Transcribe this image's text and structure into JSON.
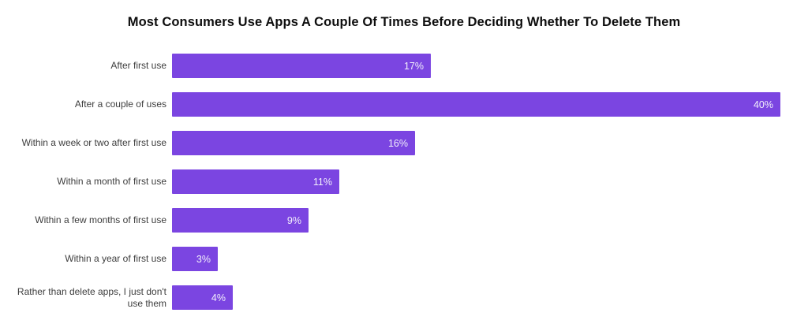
{
  "chart_data": {
    "type": "bar",
    "orientation": "horizontal",
    "title": "Most Consumers Use Apps A Couple Of Times Before Deciding Whether To Delete Them",
    "categories": [
      "After first use",
      "After a couple of uses",
      "Within a week or two after first use",
      "Within a month of first use",
      "Within a few months of first use",
      "Within a year of first use",
      "Rather than delete apps, I just don't use them"
    ],
    "values": [
      17,
      40,
      16,
      11,
      9,
      3,
      4
    ],
    "value_labels": [
      "17%",
      "40%",
      "16%",
      "11%",
      "9%",
      "3%",
      "4%"
    ],
    "unit": "%",
    "xlim": [
      0,
      40
    ],
    "xlabel": "",
    "ylabel": "",
    "grid": false,
    "legend": false,
    "axes_visible": false,
    "value_labels_position": "inside-end",
    "bar_color": "#7B45E1",
    "value_label_color": "#F2EFFB",
    "category_label_color": "#3D3D3D",
    "title_color": "#0D0D0D",
    "background_color": "#FFFFFF"
  }
}
